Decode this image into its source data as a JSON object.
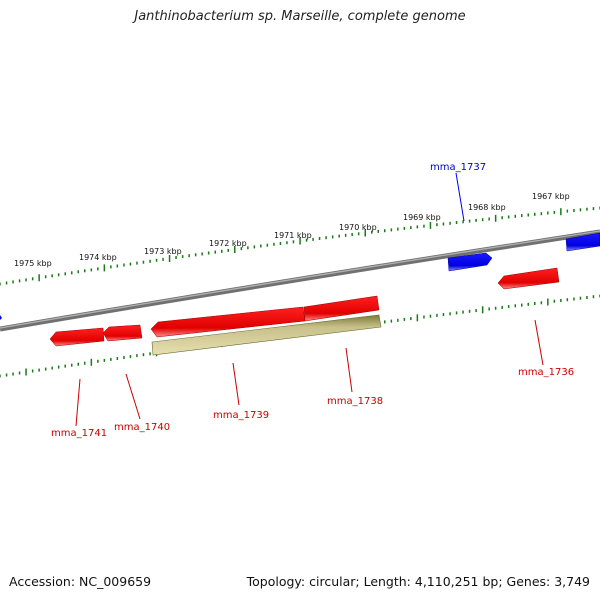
{
  "title": "Janthinobacterium sp. Marseille, complete genome",
  "footer": {
    "accession": "Accession: NC_009659",
    "summary": "Topology: circular; Length: 4,110,251 bp; Genes: 3,749"
  },
  "colors": {
    "forward_gene": "#0000ee",
    "reverse_gene": "#ee0000",
    "pseudo_gene": "#c8c08a",
    "backbone": "#808080",
    "ticks": "#1a7a1a"
  },
  "scale_labels": [
    "1975 kbp",
    "1974 kbp",
    "1973 kbp",
    "1972 kbp",
    "1971 kbp",
    "1970 kbp",
    "1969 kbp",
    "1968 kbp",
    "1967 kbp"
  ],
  "genes": [
    {
      "id": "mma_1737",
      "label": "mma_1737",
      "strand": "forward"
    },
    {
      "id": "mma_1736",
      "label": "mma_1736",
      "strand": "reverse"
    },
    {
      "id": "mma_1738",
      "label": "mma_1738",
      "strand": "reverse"
    },
    {
      "id": "mma_1739",
      "label": "mma_1739",
      "strand": "reverse"
    },
    {
      "id": "mma_1740",
      "label": "mma_1740",
      "strand": "reverse"
    },
    {
      "id": "mma_1741",
      "label": "mma_1741",
      "strand": "reverse"
    }
  ]
}
